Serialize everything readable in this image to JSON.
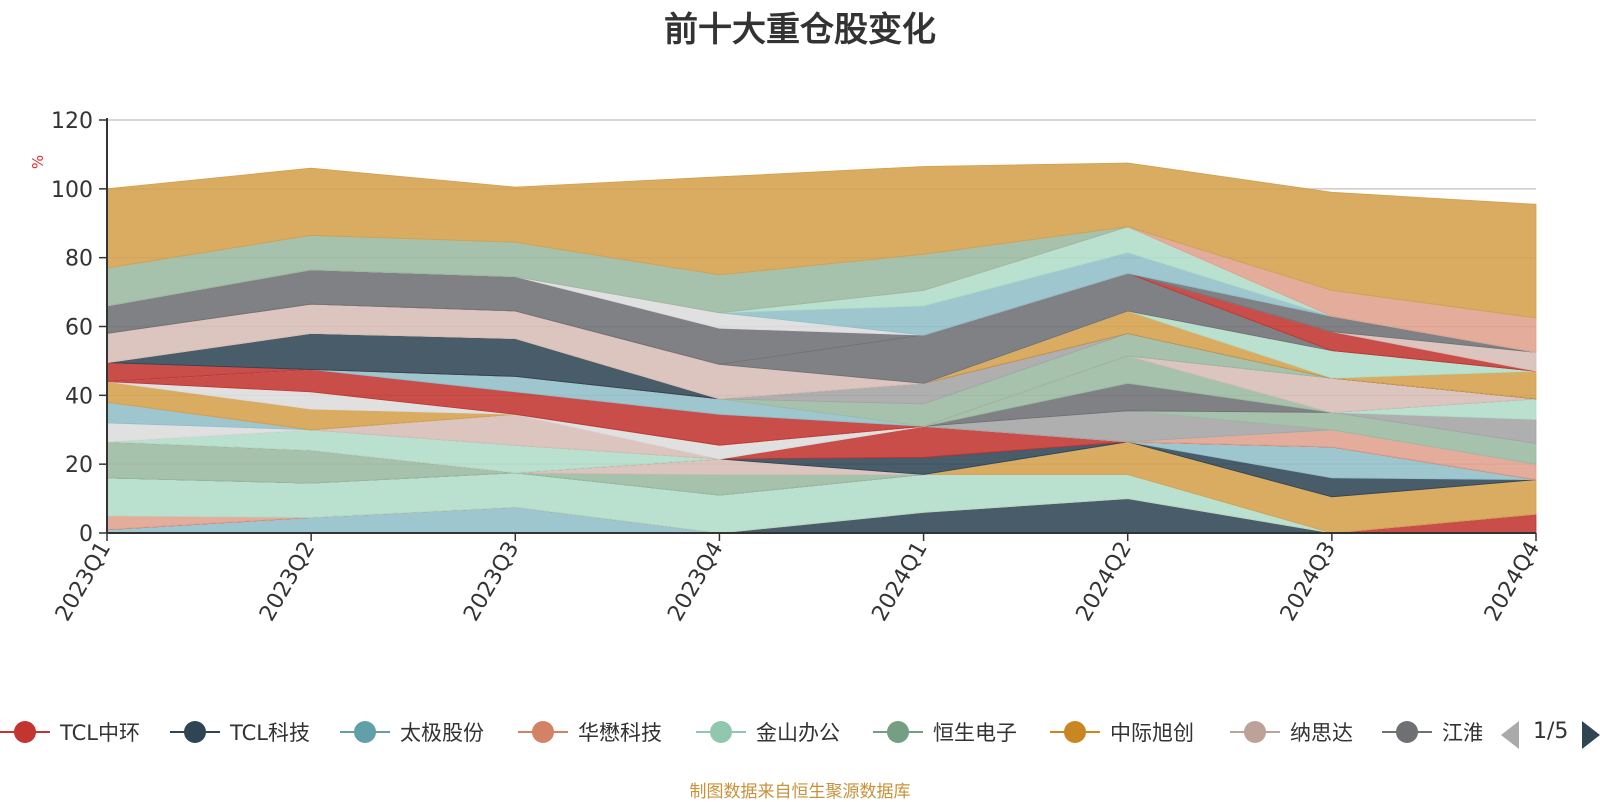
{
  "chart_data": {
    "type": "area",
    "stacked": true,
    "title": "前十大重仓股变化",
    "ylabel": "%",
    "ylim": [
      0,
      120
    ],
    "yticks": [
      0,
      20,
      40,
      60,
      80,
      100,
      120
    ],
    "grid": true,
    "legend_position": "bottom",
    "categories": [
      "2023Q1",
      "2023Q2",
      "2023Q3",
      "2023Q4",
      "2024Q1",
      "2024Q2",
      "2024Q3",
      "2024Q4"
    ],
    "series": [
      {
        "name": "",
        "color": "#91bec8",
        "values": [
          1,
          4.5,
          7.5,
          0,
          0,
          0,
          0,
          0
        ]
      },
      {
        "name": "",
        "color": "#2f4554",
        "values": [
          0,
          0,
          0,
          0,
          6,
          10,
          0,
          0
        ]
      },
      {
        "name": "",
        "color": "#c23531",
        "values": [
          0,
          0,
          0,
          0,
          0,
          0,
          0,
          5.5
        ]
      },
      {
        "name": "",
        "color": "#e0a08c",
        "values": [
          4,
          0,
          0,
          0,
          0,
          0,
          0,
          0
        ]
      },
      {
        "name": "",
        "color": "#b0dcc8",
        "values": [
          11,
          10,
          10,
          11,
          11,
          7,
          0,
          0
        ]
      },
      {
        "name": "",
        "color": "#d4a04c",
        "values": [
          0,
          0,
          0,
          0,
          0,
          9.5,
          10.5,
          10
        ]
      },
      {
        "name": "",
        "color": "#2f4554",
        "values": [
          0,
          0,
          0,
          0,
          0,
          0,
          5.5,
          0
        ]
      },
      {
        "name": "",
        "color": "#91bec8",
        "values": [
          0,
          0,
          0,
          0,
          0,
          0,
          9,
          0
        ]
      },
      {
        "name": "",
        "color": "#9bbaa0",
        "values": [
          10.5,
          9.5,
          0,
          6,
          0,
          0,
          0,
          0
        ]
      },
      {
        "name": "",
        "color": "#d8bdb6",
        "values": [
          0,
          0,
          0,
          4.5,
          0,
          0,
          0,
          0
        ]
      },
      {
        "name": "",
        "color": "#2f4554",
        "values": [
          0,
          0,
          0,
          0,
          5,
          0,
          0,
          0
        ]
      },
      {
        "name": "",
        "color": "#c23531",
        "values": [
          0,
          0,
          0,
          0,
          9,
          0,
          0,
          0
        ]
      },
      {
        "name": "",
        "color": "#e0a08c",
        "values": [
          0,
          0,
          0,
          0,
          0,
          0,
          5,
          4.5
        ]
      },
      {
        "name": "",
        "color": "#b0dcc8",
        "values": [
          0,
          6,
          8,
          0,
          0,
          0,
          0,
          0
        ]
      },
      {
        "name": "",
        "color": "#a4a4a4",
        "values": [
          0,
          0,
          0,
          0,
          0,
          9,
          0,
          0
        ]
      },
      {
        "name": "",
        "color": "#9bbaa0",
        "values": [
          0,
          0,
          0,
          0,
          0,
          0,
          5,
          6
        ]
      },
      {
        "name": "",
        "color": "#d8bdb6",
        "values": [
          0,
          0,
          9,
          0,
          0,
          0,
          0,
          0
        ]
      },
      {
        "name": "",
        "color": "#dcdcdc",
        "values": [
          5.5,
          0,
          0,
          4,
          0,
          0,
          0,
          0
        ]
      },
      {
        "name": "",
        "color": "#91bec8",
        "values": [
          6,
          0,
          0,
          0,
          0,
          0,
          0,
          0
        ]
      },
      {
        "name": "",
        "color": "#a4a4a4",
        "values": [
          0,
          0,
          0,
          0,
          0,
          0,
          0,
          7
        ]
      },
      {
        "name": "",
        "color": "#b0dcc8",
        "values": [
          0,
          0,
          0,
          0,
          0,
          0,
          0,
          6
        ]
      },
      {
        "name": "",
        "color": "#6e7074",
        "values": [
          0,
          0,
          0,
          0,
          0,
          8,
          0,
          0
        ]
      },
      {
        "name": "",
        "color": "#9bbaa0",
        "values": [
          0,
          0,
          0,
          0,
          0,
          8,
          0,
          0
        ]
      },
      {
        "name": "",
        "color": "#d8bdb6",
        "values": [
          0,
          0,
          0,
          0,
          0,
          0,
          10,
          0
        ]
      },
      {
        "name": "",
        "color": "#d4a04c",
        "values": [
          6,
          6,
          0,
          0,
          0,
          0,
          0,
          0
        ]
      },
      {
        "name": "",
        "color": "#dcdcdc",
        "values": [
          0,
          5,
          0,
          0,
          0,
          0,
          0,
          0
        ]
      },
      {
        "name": "",
        "color": "#c23531",
        "values": [
          0,
          6.5,
          6.5,
          9,
          0,
          0,
          0,
          0
        ]
      },
      {
        "name": "",
        "color": "#91bec8",
        "values": [
          0,
          0,
          4.5,
          4.5,
          0,
          0,
          0,
          0
        ]
      },
      {
        "name": "",
        "color": "#9bbaa0",
        "values": [
          0,
          0,
          0,
          0,
          6.5,
          6.5,
          0,
          0
        ]
      },
      {
        "name": "",
        "color": "#a4a4a4",
        "values": [
          0,
          0,
          0,
          0,
          6,
          0,
          0,
          0
        ]
      },
      {
        "name": "",
        "color": "#c23531",
        "values": [
          5.5,
          0,
          0,
          0,
          0,
          0,
          0,
          0
        ]
      },
      {
        "name": "",
        "color": "#2f4554",
        "values": [
          0,
          10.5,
          11,
          0,
          0,
          0,
          0,
          0
        ]
      },
      {
        "name": "",
        "color": "#d4a04c",
        "values": [
          0,
          0,
          0,
          0,
          0,
          6.5,
          0,
          8
        ]
      },
      {
        "name": "",
        "color": "#b0dcc8",
        "values": [
          0,
          0,
          0,
          0,
          0,
          0,
          8,
          0
        ]
      },
      {
        "name": "",
        "color": "#d8bdb6",
        "values": [
          8.5,
          8.5,
          8,
          10,
          0,
          0,
          0,
          0
        ]
      },
      {
        "name": "",
        "color": "#6e7074",
        "values": [
          0,
          0,
          0,
          0,
          14,
          11,
          0,
          0
        ]
      },
      {
        "name": "",
        "color": "#c23531",
        "values": [
          0,
          0,
          0,
          0,
          0,
          0,
          5.5,
          0
        ]
      },
      {
        "name": "",
        "color": "#d8bdb6",
        "values": [
          0,
          0,
          0,
          0,
          0,
          0,
          0,
          5.5
        ]
      },
      {
        "name": "",
        "color": "#6e7074",
        "values": [
          8,
          10,
          10,
          10.5,
          0,
          0,
          4.5,
          0
        ]
      },
      {
        "name": "",
        "color": "#dcdcdc",
        "values": [
          0,
          0,
          0,
          4.5,
          0,
          0,
          0,
          0
        ]
      },
      {
        "name": "",
        "color": "#91bec8",
        "values": [
          0,
          0,
          0,
          0,
          8.5,
          6,
          0,
          0
        ]
      },
      {
        "name": "",
        "color": "#b0dcc8",
        "values": [
          0,
          0,
          0,
          0,
          4.5,
          7.5,
          0,
          0
        ]
      },
      {
        "name": "",
        "color": "#e0a08c",
        "values": [
          0,
          0,
          0,
          0,
          0,
          0,
          7.5,
          10
        ]
      },
      {
        "name": "",
        "color": "#9bbaa0",
        "values": [
          11,
          10,
          10,
          11,
          10.5,
          0,
          0,
          0
        ]
      },
      {
        "name": "",
        "color": "#d4a04c",
        "values": [
          23,
          19.5,
          16,
          28.5,
          25.5,
          18.5,
          28.5,
          33
        ]
      }
    ]
  },
  "legend": {
    "items": [
      {
        "label": "TCL中环",
        "color": "#c23531"
      },
      {
        "label": "TCL科技",
        "color": "#2f4554"
      },
      {
        "label": "太极股份",
        "color": "#61a0a8"
      },
      {
        "label": "华懋科技",
        "color": "#d48265"
      },
      {
        "label": "金山办公",
        "color": "#91c7ae"
      },
      {
        "label": "恒生电子",
        "color": "#749f83"
      },
      {
        "label": "中际旭创",
        "color": "#ca8622"
      },
      {
        "label": "纳思达",
        "color": "#bda29a"
      },
      {
        "label": "江淮",
        "color": "#6e7074"
      }
    ],
    "page": "1/5"
  },
  "source_note": "制图数据来自恒生聚源数据库"
}
